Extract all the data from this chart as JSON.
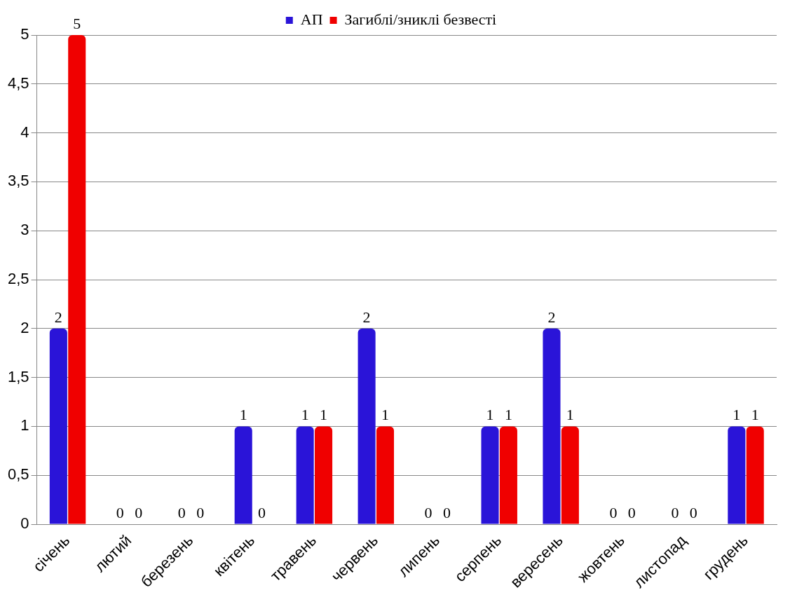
{
  "chart_data": {
    "type": "bar",
    "categories": [
      "січень",
      "лютий",
      "березень",
      "квітень",
      "травень",
      "червень",
      "липень",
      "серпень",
      "вересень",
      "жовтень",
      "листопад",
      "грудень"
    ],
    "series": [
      {
        "name": "АП",
        "color": "#2a14d8",
        "values": [
          2,
          0,
          0,
          1,
          1,
          2,
          0,
          1,
          2,
          0,
          0,
          1
        ]
      },
      {
        "name": "Загиблі/зниклі безвесті",
        "color": "#f00000",
        "values": [
          5,
          0,
          0,
          0,
          1,
          1,
          0,
          1,
          1,
          0,
          0,
          1
        ]
      }
    ],
    "ylim": [
      0,
      5
    ],
    "yticks": [
      0,
      {
        "value": 0.5,
        "label": "0,5"
      },
      1,
      {
        "value": 1.5,
        "label": "1,5"
      },
      2,
      {
        "value": 2.5,
        "label": "2,5"
      },
      3,
      {
        "value": 3.5,
        "label": "3,5"
      },
      4,
      {
        "value": 4.5,
        "label": "4,5"
      },
      5
    ],
    "grid": "y",
    "legend": "top",
    "data_labels": true
  }
}
